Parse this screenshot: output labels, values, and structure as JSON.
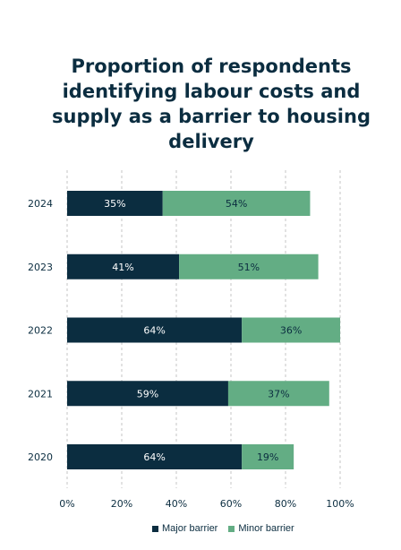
{
  "title_lines": [
    "Proportion of respondents",
    "identifying labour costs and",
    "supply as a barrier to housing",
    "delivery"
  ],
  "colors": {
    "major": "#0b2d40",
    "minor": "#63ad84",
    "grid": "#c4c4c4",
    "text": "#0b2d40"
  },
  "chart_data": {
    "type": "bar",
    "orientation": "horizontal",
    "stacked": true,
    "title": "Proportion of respondents identifying labour costs and supply as a barrier to housing delivery",
    "categories": [
      "2024",
      "2023",
      "2022",
      "2021",
      "2020"
    ],
    "series": [
      {
        "name": "Major barrier",
        "values": [
          35,
          41,
          64,
          59,
          64
        ]
      },
      {
        "name": "Minor barrier",
        "values": [
          54,
          51,
          36,
          37,
          19
        ]
      }
    ],
    "data_labels": [
      [
        "35%",
        "41%",
        "64%",
        "59%",
        "64%"
      ],
      [
        "54%",
        "51%",
        "36%",
        "37%",
        "19%"
      ]
    ],
    "xlim": [
      0,
      100
    ],
    "x_ticks": [
      "0%",
      "20%",
      "40%",
      "60%",
      "80%",
      "100%"
    ],
    "grid": "vertical-dashed",
    "legend_position": "bottom"
  },
  "legend": {
    "major_label": "Major barrier",
    "minor_label": "Minor barrier"
  }
}
